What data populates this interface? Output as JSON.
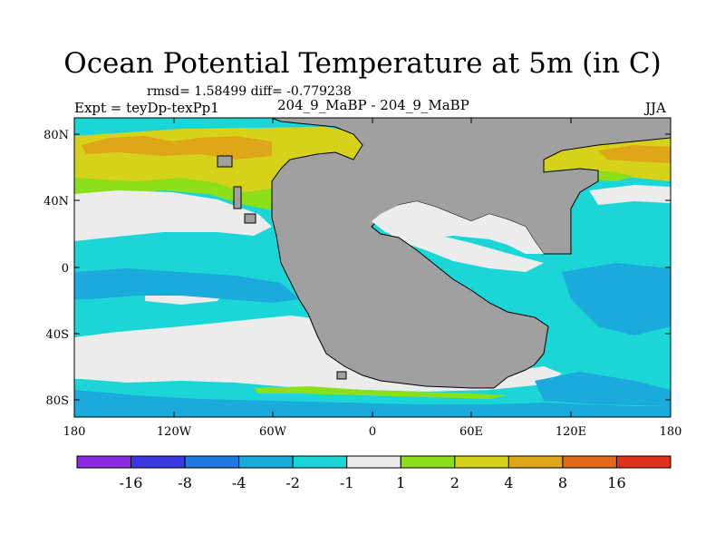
{
  "title": "Ocean Potential Temperature at 5m (in C)",
  "stats": "rmsd= 1.58499  diff= -0.779238",
  "left_label": "Expt = teyDp-texPp1",
  "center_label": "204_9_MaBP - 204_9_MaBP",
  "right_label": "JJA",
  "lat_ticks": [
    "80N",
    "40N",
    "0",
    "40S",
    "80S"
  ],
  "lon_ticks": [
    "180",
    "120W",
    "60W",
    "0",
    "60E",
    "120E",
    "180"
  ],
  "colorbar": {
    "colors": [
      "#8a2be2",
      "#3a3ae0",
      "#1e7ae0",
      "#1aaadc",
      "#1ad6d6",
      "#ececec",
      "#8ce01a",
      "#d6d21a",
      "#e0a61a",
      "#e06a1a",
      "#e0321a"
    ],
    "labels": [
      "-16",
      "-8",
      "-4",
      "-2",
      "-1",
      "1",
      "2",
      "4",
      "8",
      "16"
    ]
  },
  "legend_colors": {
    "land": "#a0a0a0",
    "cyan": "#1ad6d6",
    "light_blue": "#1aaadc",
    "white": "#ececec",
    "green": "#8ce01a",
    "olive": "#d6d21a",
    "orange": "#e0a61a"
  }
}
